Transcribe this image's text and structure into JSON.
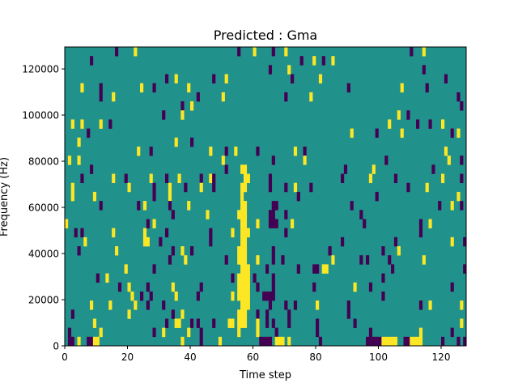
{
  "chart_data": {
    "type": "heatmap",
    "title": "Predicted : Gma",
    "xlabel": "Time step",
    "ylabel": "Frequency (Hz)",
    "xlim": [
      0,
      128
    ],
    "ylim": [
      0,
      129500
    ],
    "n_time_steps": 128,
    "n_freq_bins": 33,
    "xticks": [
      0,
      20,
      40,
      60,
      80,
      100,
      120
    ],
    "xtick_labels": [
      "0",
      "20",
      "40",
      "60",
      "80",
      "100",
      "120"
    ],
    "yticks": [
      0,
      20000,
      40000,
      60000,
      80000,
      100000,
      120000
    ],
    "ytick_labels": [
      "0",
      "20000",
      "40000",
      "60000",
      "80000",
      "100000",
      "120000"
    ],
    "background_value": 0,
    "colors": {
      "-1": "#440154",
      "0": "#21918c",
      "1": "#fde725"
    },
    "runs_format": "[freq_bin, t_start, t_end, value]",
    "runs": [
      [
        32,
        16,
        16,
        -1
      ],
      [
        32,
        22,
        22,
        1
      ],
      [
        32,
        55,
        55,
        -1
      ],
      [
        32,
        60,
        60,
        1
      ],
      [
        32,
        66,
        66,
        -1
      ],
      [
        32,
        70,
        70,
        1
      ],
      [
        32,
        110,
        110,
        -1
      ],
      [
        32,
        114,
        114,
        1
      ],
      [
        31,
        8,
        8,
        -1
      ],
      [
        31,
        75,
        75,
        -1
      ],
      [
        31,
        79,
        79,
        1
      ],
      [
        31,
        82,
        82,
        -1
      ],
      [
        31,
        85,
        85,
        1
      ],
      [
        30,
        65,
        65,
        -1
      ],
      [
        30,
        71,
        71,
        1
      ],
      [
        30,
        114,
        114,
        -1
      ],
      [
        29,
        32,
        32,
        -1
      ],
      [
        29,
        35,
        35,
        1
      ],
      [
        29,
        47,
        47,
        -1
      ],
      [
        29,
        51,
        51,
        1
      ],
      [
        29,
        72,
        72,
        -1
      ],
      [
        29,
        81,
        81,
        1
      ],
      [
        29,
        121,
        121,
        -1
      ],
      [
        28,
        5,
        5,
        1
      ],
      [
        28,
        11,
        11,
        -1
      ],
      [
        28,
        24,
        24,
        1
      ],
      [
        28,
        28,
        28,
        -1
      ],
      [
        28,
        39,
        39,
        1
      ],
      [
        28,
        90,
        90,
        -1
      ],
      [
        28,
        107,
        107,
        1
      ],
      [
        28,
        115,
        115,
        -1
      ],
      [
        27,
        11,
        11,
        -1
      ],
      [
        27,
        15,
        15,
        1
      ],
      [
        27,
        42,
        42,
        -1
      ],
      [
        27,
        50,
        50,
        1
      ],
      [
        27,
        70,
        70,
        -1
      ],
      [
        27,
        78,
        78,
        1
      ],
      [
        27,
        125,
        125,
        -1
      ],
      [
        26,
        37,
        37,
        -1
      ],
      [
        26,
        40,
        40,
        1
      ],
      [
        26,
        126,
        126,
        -1
      ],
      [
        25,
        31,
        31,
        -1
      ],
      [
        25,
        37,
        37,
        1
      ],
      [
        25,
        106,
        106,
        1
      ],
      [
        25,
        109,
        109,
        -1
      ],
      [
        24,
        2,
        2,
        1
      ],
      [
        24,
        5,
        5,
        1
      ],
      [
        24,
        11,
        11,
        1
      ],
      [
        24,
        14,
        14,
        -1
      ],
      [
        24,
        103,
        103,
        1
      ],
      [
        24,
        112,
        112,
        -1
      ],
      [
        24,
        116,
        116,
        -1
      ],
      [
        24,
        120,
        120,
        1
      ],
      [
        23,
        7,
        7,
        -1
      ],
      [
        23,
        91,
        91,
        1
      ],
      [
        23,
        99,
        99,
        -1
      ],
      [
        23,
        107,
        107,
        1
      ],
      [
        23,
        123,
        123,
        -1
      ],
      [
        23,
        125,
        125,
        1
      ],
      [
        22,
        4,
        4,
        1
      ],
      [
        22,
        35,
        35,
        1
      ],
      [
        22,
        40,
        40,
        -1
      ],
      [
        21,
        23,
        23,
        1
      ],
      [
        21,
        27,
        27,
        -1
      ],
      [
        21,
        46,
        46,
        1
      ],
      [
        21,
        51,
        51,
        -1
      ],
      [
        21,
        54,
        54,
        1
      ],
      [
        21,
        61,
        61,
        -1
      ],
      [
        21,
        73,
        73,
        1
      ],
      [
        21,
        76,
        76,
        -1
      ],
      [
        21,
        121,
        121,
        1
      ],
      [
        20,
        1,
        1,
        1
      ],
      [
        20,
        4,
        4,
        1
      ],
      [
        20,
        50,
        50,
        1
      ],
      [
        20,
        66,
        66,
        -1
      ],
      [
        20,
        76,
        76,
        1
      ],
      [
        20,
        102,
        102,
        -1
      ],
      [
        20,
        122,
        122,
        1
      ],
      [
        20,
        126,
        126,
        -1
      ],
      [
        19,
        8,
        8,
        -1
      ],
      [
        19,
        51,
        51,
        -1
      ],
      [
        19,
        56,
        57,
        1
      ],
      [
        19,
        89,
        89,
        -1
      ],
      [
        19,
        98,
        98,
        1
      ],
      [
        19,
        117,
        117,
        -1
      ],
      [
        18,
        5,
        5,
        -1
      ],
      [
        18,
        15,
        15,
        1
      ],
      [
        18,
        19,
        19,
        -1
      ],
      [
        18,
        27,
        27,
        1
      ],
      [
        18,
        32,
        32,
        -1
      ],
      [
        18,
        36,
        36,
        1
      ],
      [
        18,
        43,
        43,
        -1
      ],
      [
        18,
        46,
        46,
        1
      ],
      [
        18,
        47,
        47,
        -1
      ],
      [
        18,
        57,
        58,
        1
      ],
      [
        18,
        65,
        65,
        -1
      ],
      [
        18,
        88,
        88,
        -1
      ],
      [
        18,
        97,
        97,
        1
      ],
      [
        18,
        105,
        105,
        -1
      ],
      [
        18,
        120,
        120,
        1
      ],
      [
        18,
        126,
        126,
        -1
      ],
      [
        17,
        2,
        2,
        1
      ],
      [
        17,
        20,
        20,
        1
      ],
      [
        17,
        28,
        28,
        -1
      ],
      [
        17,
        33,
        33,
        1
      ],
      [
        17,
        38,
        38,
        -1
      ],
      [
        17,
        43,
        43,
        1
      ],
      [
        17,
        47,
        47,
        -1
      ],
      [
        17,
        56,
        57,
        1
      ],
      [
        17,
        65,
        65,
        -1
      ],
      [
        17,
        70,
        70,
        -1
      ],
      [
        17,
        73,
        73,
        1
      ],
      [
        17,
        78,
        78,
        -1
      ],
      [
        17,
        109,
        109,
        -1
      ],
      [
        17,
        115,
        115,
        1
      ],
      [
        16,
        2,
        2,
        1
      ],
      [
        16,
        9,
        9,
        1
      ],
      [
        16,
        28,
        28,
        -1
      ],
      [
        16,
        33,
        33,
        1
      ],
      [
        16,
        56,
        56,
        1
      ],
      [
        16,
        74,
        74,
        -1
      ],
      [
        16,
        99,
        99,
        -1
      ],
      [
        16,
        125,
        125,
        1
      ],
      [
        15,
        11,
        11,
        -1
      ],
      [
        15,
        23,
        23,
        -1
      ],
      [
        15,
        25,
        25,
        1
      ],
      [
        15,
        33,
        33,
        -1
      ],
      [
        15,
        39,
        39,
        1
      ],
      [
        15,
        56,
        57,
        1
      ],
      [
        15,
        66,
        67,
        -1
      ],
      [
        15,
        91,
        91,
        -1
      ],
      [
        15,
        119,
        119,
        -1
      ],
      [
        15,
        123,
        123,
        1
      ],
      [
        15,
        126,
        126,
        -1
      ],
      [
        14,
        34,
        34,
        -1
      ],
      [
        14,
        45,
        45,
        1
      ],
      [
        14,
        55,
        57,
        1
      ],
      [
        14,
        65,
        66,
        -1
      ],
      [
        14,
        70,
        70,
        -1
      ],
      [
        14,
        94,
        94,
        -1
      ],
      [
        13,
        0,
        0,
        1
      ],
      [
        13,
        26,
        26,
        -1
      ],
      [
        13,
        28,
        28,
        1
      ],
      [
        13,
        56,
        57,
        1
      ],
      [
        13,
        61,
        61,
        1
      ],
      [
        13,
        65,
        67,
        -1
      ],
      [
        13,
        72,
        72,
        1
      ],
      [
        13,
        95,
        95,
        -1
      ],
      [
        13,
        113,
        113,
        -1
      ],
      [
        13,
        116,
        116,
        1
      ],
      [
        12,
        3,
        3,
        -1
      ],
      [
        12,
        5,
        5,
        -1
      ],
      [
        12,
        15,
        15,
        1
      ],
      [
        12,
        25,
        25,
        1
      ],
      [
        12,
        32,
        32,
        -1
      ],
      [
        12,
        46,
        46,
        -1
      ],
      [
        12,
        53,
        53,
        1
      ],
      [
        12,
        56,
        57,
        1
      ],
      [
        12,
        58,
        58,
        1
      ],
      [
        12,
        70,
        70,
        -1
      ],
      [
        12,
        113,
        113,
        -1
      ],
      [
        11,
        6,
        6,
        1
      ],
      [
        11,
        25,
        26,
        1
      ],
      [
        11,
        30,
        30,
        -1
      ],
      [
        11,
        46,
        46,
        -1
      ],
      [
        11,
        56,
        57,
        1
      ],
      [
        11,
        88,
        88,
        -1
      ],
      [
        11,
        105,
        105,
        -1
      ],
      [
        11,
        123,
        123,
        1
      ],
      [
        11,
        127,
        127,
        -1
      ],
      [
        10,
        4,
        4,
        -1
      ],
      [
        10,
        16,
        16,
        1
      ],
      [
        10,
        34,
        34,
        -1
      ],
      [
        10,
        37,
        37,
        1
      ],
      [
        10,
        40,
        40,
        -1
      ],
      [
        10,
        55,
        57,
        1
      ],
      [
        10,
        66,
        66,
        -1
      ],
      [
        10,
        84,
        84,
        -1
      ],
      [
        10,
        101,
        101,
        -1
      ],
      [
        10,
        106,
        106,
        1
      ],
      [
        9,
        33,
        33,
        -1
      ],
      [
        9,
        38,
        38,
        1
      ],
      [
        9,
        51,
        51,
        -1
      ],
      [
        9,
        55,
        57,
        1
      ],
      [
        9,
        61,
        61,
        1
      ],
      [
        9,
        66,
        66,
        -1
      ],
      [
        9,
        69,
        69,
        -1
      ],
      [
        9,
        85,
        85,
        1
      ],
      [
        9,
        94,
        94,
        -1
      ],
      [
        9,
        96,
        96,
        -1
      ],
      [
        9,
        103,
        103,
        -1
      ],
      [
        9,
        114,
        114,
        1
      ],
      [
        8,
        19,
        19,
        1
      ],
      [
        8,
        28,
        28,
        -1
      ],
      [
        8,
        56,
        58,
        1
      ],
      [
        8,
        64,
        64,
        -1
      ],
      [
        8,
        74,
        74,
        -1
      ],
      [
        8,
        79,
        80,
        -1
      ],
      [
        8,
        82,
        83,
        1
      ],
      [
        8,
        104,
        104,
        -1
      ],
      [
        8,
        127,
        127,
        -1
      ],
      [
        7,
        10,
        10,
        -1
      ],
      [
        7,
        13,
        13,
        1
      ],
      [
        7,
        53,
        53,
        -1
      ],
      [
        7,
        55,
        58,
        1
      ],
      [
        7,
        60,
        60,
        -1
      ],
      [
        7,
        66,
        66,
        -1
      ],
      [
        7,
        101,
        101,
        -1
      ],
      [
        6,
        17,
        17,
        -1
      ],
      [
        6,
        20,
        20,
        1
      ],
      [
        6,
        26,
        26,
        -1
      ],
      [
        6,
        34,
        34,
        1
      ],
      [
        6,
        43,
        43,
        -1
      ],
      [
        6,
        55,
        58,
        1
      ],
      [
        6,
        61,
        61,
        -1
      ],
      [
        6,
        66,
        66,
        -1
      ],
      [
        6,
        79,
        79,
        -1
      ],
      [
        6,
        92,
        92,
        1
      ],
      [
        6,
        97,
        97,
        -1
      ],
      [
        6,
        123,
        123,
        -1
      ],
      [
        5,
        21,
        21,
        1
      ],
      [
        5,
        24,
        24,
        -1
      ],
      [
        5,
        27,
        27,
        -1
      ],
      [
        5,
        35,
        35,
        1
      ],
      [
        5,
        42,
        42,
        -1
      ],
      [
        5,
        53,
        53,
        1
      ],
      [
        5,
        55,
        58,
        1
      ],
      [
        5,
        63,
        66,
        -1
      ],
      [
        5,
        101,
        101,
        -1
      ],
      [
        4,
        8,
        8,
        1
      ],
      [
        4,
        14,
        14,
        1
      ],
      [
        4,
        22,
        22,
        1
      ],
      [
        4,
        26,
        26,
        -1
      ],
      [
        4,
        31,
        31,
        -1
      ],
      [
        4,
        56,
        58,
        1
      ],
      [
        4,
        65,
        65,
        -1
      ],
      [
        4,
        70,
        70,
        -1
      ],
      [
        4,
        73,
        73,
        -1
      ],
      [
        4,
        80,
        80,
        1
      ],
      [
        4,
        90,
        90,
        -1
      ],
      [
        4,
        113,
        113,
        -1
      ],
      [
        4,
        116,
        116,
        1
      ],
      [
        4,
        126,
        126,
        1
      ],
      [
        3,
        2,
        2,
        -1
      ],
      [
        3,
        20,
        20,
        1
      ],
      [
        3,
        34,
        34,
        -1
      ],
      [
        3,
        37,
        37,
        1
      ],
      [
        3,
        55,
        57,
        1
      ],
      [
        3,
        61,
        61,
        -1
      ],
      [
        3,
        64,
        64,
        -1
      ],
      [
        3,
        71,
        71,
        -1
      ],
      [
        3,
        90,
        90,
        -1
      ],
      [
        2,
        9,
        9,
        1
      ],
      [
        2,
        32,
        32,
        -1
      ],
      [
        2,
        35,
        36,
        1
      ],
      [
        2,
        40,
        40,
        -1
      ],
      [
        2,
        42,
        42,
        -1
      ],
      [
        2,
        47,
        47,
        -1
      ],
      [
        2,
        52,
        53,
        1
      ],
      [
        2,
        55,
        57,
        1
      ],
      [
        2,
        61,
        61,
        1
      ],
      [
        2,
        64,
        64,
        -1
      ],
      [
        2,
        66,
        66,
        -1
      ],
      [
        2,
        71,
        71,
        -1
      ],
      [
        2,
        80,
        80,
        -1
      ],
      [
        2,
        92,
        92,
        -1
      ],
      [
        2,
        126,
        126,
        1
      ],
      [
        1,
        1,
        1,
        -1
      ],
      [
        1,
        11,
        11,
        1
      ],
      [
        1,
        28,
        28,
        -1
      ],
      [
        1,
        31,
        31,
        1
      ],
      [
        1,
        39,
        39,
        1
      ],
      [
        1,
        43,
        43,
        -1
      ],
      [
        1,
        55,
        55,
        1
      ],
      [
        1,
        61,
        61,
        1
      ],
      [
        1,
        67,
        67,
        -1
      ],
      [
        1,
        80,
        80,
        -1
      ],
      [
        1,
        97,
        97,
        -1
      ],
      [
        1,
        113,
        113,
        1
      ],
      [
        1,
        123,
        123,
        -1
      ],
      [
        0,
        1,
        2,
        -1
      ],
      [
        0,
        4,
        4,
        1
      ],
      [
        0,
        7,
        8,
        -1
      ],
      [
        0,
        9,
        10,
        1
      ],
      [
        0,
        37,
        37,
        1
      ],
      [
        0,
        43,
        43,
        -1
      ],
      [
        0,
        49,
        49,
        1
      ],
      [
        0,
        62,
        65,
        -1
      ],
      [
        0,
        67,
        69,
        1
      ],
      [
        0,
        71,
        71,
        1
      ],
      [
        0,
        81,
        81,
        -1
      ],
      [
        0,
        96,
        100,
        -1
      ],
      [
        0,
        101,
        105,
        1
      ],
      [
        0,
        108,
        109,
        -1
      ],
      [
        0,
        110,
        113,
        1
      ],
      [
        0,
        120,
        120,
        -1
      ],
      [
        0,
        125,
        125,
        -1
      ],
      [
        0,
        127,
        127,
        -1
      ]
    ]
  }
}
